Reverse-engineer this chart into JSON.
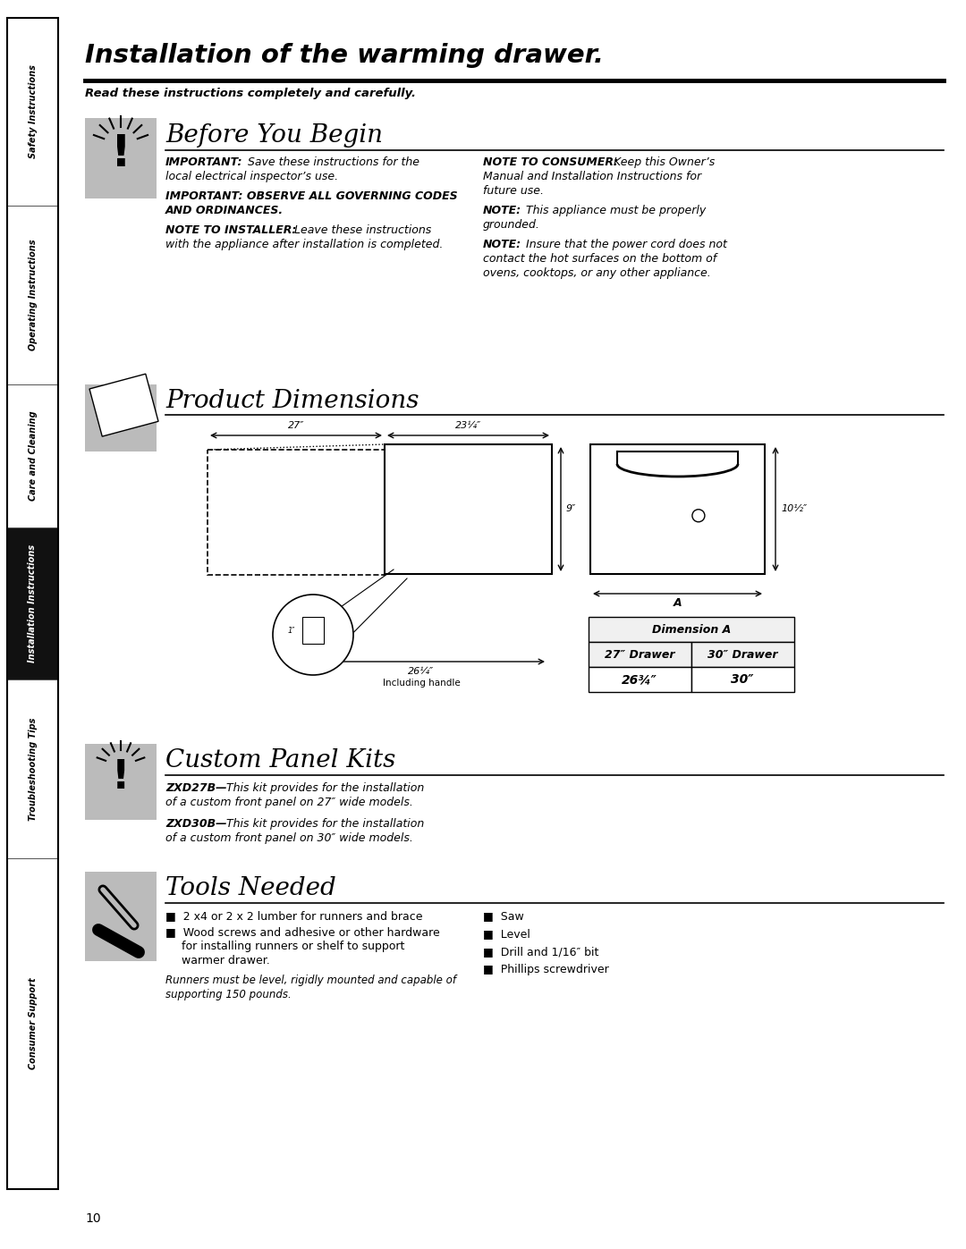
{
  "page_title": "Installation of the warming drawer.",
  "subtitle": "Read these instructions completely and carefully.",
  "bg_color": "#ffffff",
  "sidebar_labels": [
    "Safety Instructions",
    "Operating Instructions",
    "Care and Cleaning",
    "Installation Instructions",
    "Troubleshooting Tips",
    "Consumer Support"
  ],
  "sidebar_active": "Installation Instructions",
  "section1_title": "Before You Begin",
  "section2_title": "Product Dimensions",
  "section3_title": "Custom Panel Kits",
  "section4_title": "Tools Needed",
  "tools_right": [
    "Saw",
    "Level",
    "Drill and 1/16″ bit",
    "Phillips screwdriver"
  ],
  "page_number": "10"
}
